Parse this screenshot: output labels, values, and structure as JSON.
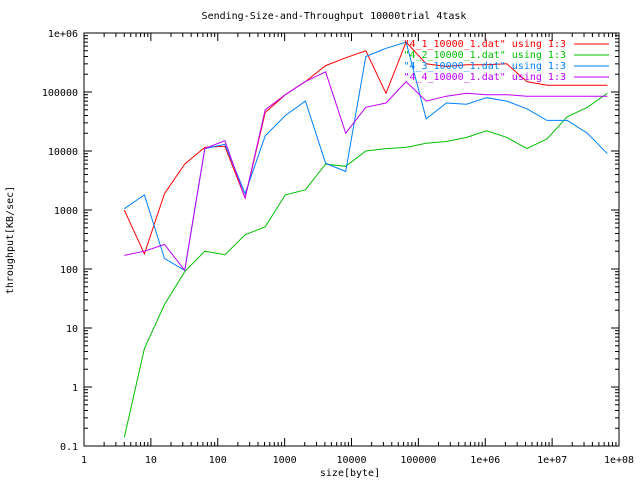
{
  "chart_data": {
    "type": "line",
    "title": "Sending-Size-and-Throughput 10000trial 4task",
    "xlabel": "size[byte]",
    "ylabel": "throughput[KB/sec]",
    "xscale": "log",
    "yscale": "log",
    "xlim": [
      1,
      100000000
    ],
    "ylim": [
      0.1,
      1000000
    ],
    "grid": false,
    "legend_position": "top-right",
    "x_ticks": [
      "1",
      "10",
      "100",
      "1000",
      "10000",
      "100000",
      "1e+06",
      "1e+07",
      "1e+08"
    ],
    "y_ticks": [
      "0.1",
      "1",
      "10",
      "100",
      "1000",
      "10000",
      "100000",
      "1e+06"
    ],
    "x": [
      4,
      8,
      16,
      32,
      64,
      128,
      256,
      512,
      1024,
      2048,
      4096,
      8192,
      16384,
      32768,
      65536,
      131072,
      262144,
      524288,
      1048576,
      2097152,
      4194304,
      8388608,
      16777216,
      33554432,
      67108864
    ],
    "series": [
      {
        "name": "\"4_1_10000_1.dat\" using 1:3",
        "color": "#ff0000",
        "values": [
          1000,
          180,
          1900,
          6000,
          11500,
          12000,
          1600,
          45000,
          90000,
          150000,
          280000,
          380000,
          500000,
          95000,
          700000,
          300000,
          270000,
          290000,
          290000,
          300000,
          150000,
          130000,
          130000,
          130000,
          130000
        ]
      },
      {
        "name": "\"4_2_10000_1.dat\" using 1:3",
        "color": "#00c000",
        "values": [
          0.14,
          4.5,
          25,
          90,
          200,
          175,
          380,
          520,
          1800,
          2200,
          6000,
          5500,
          10000,
          11000,
          11500,
          13500,
          14500,
          17000,
          22000,
          17000,
          11000,
          16000,
          38000,
          55000,
          95000
        ]
      },
      {
        "name": "\"4_3_10000_1.dat\" using 1:3",
        "color": "#0080ff",
        "values": [
          1050,
          1800,
          150,
          95,
          11000,
          13000,
          1900,
          18000,
          40000,
          70000,
          6200,
          4500,
          400000,
          550000,
          700000,
          35000,
          65000,
          62000,
          80000,
          70000,
          52000,
          33000,
          33000,
          20000,
          9000
        ]
      },
      {
        "name": "\"4_4_10000_1.dat\" using 1:3",
        "color": "#c000ff",
        "values": [
          170,
          200,
          260,
          95,
          11000,
          15000,
          1600,
          50000,
          90000,
          150000,
          220000,
          20000,
          55000,
          65000,
          150000,
          70000,
          85000,
          95000,
          90000,
          90000,
          85000,
          85000,
          85000,
          85000,
          85000
        ]
      }
    ]
  }
}
